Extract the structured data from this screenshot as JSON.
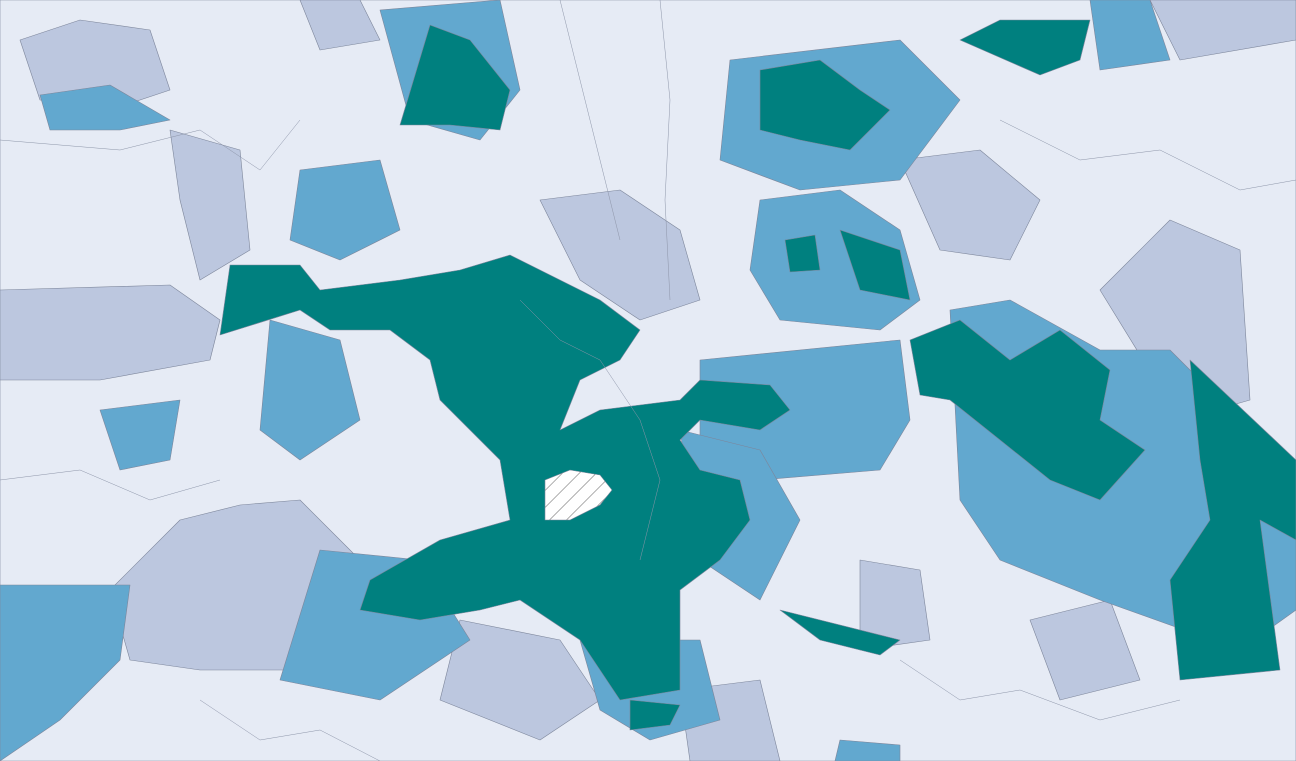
{
  "map": {
    "fill_colors": [
      "#e6ebf5",
      "#bcc7df",
      "#62a8cf",
      "#00807f"
    ]
  }
}
